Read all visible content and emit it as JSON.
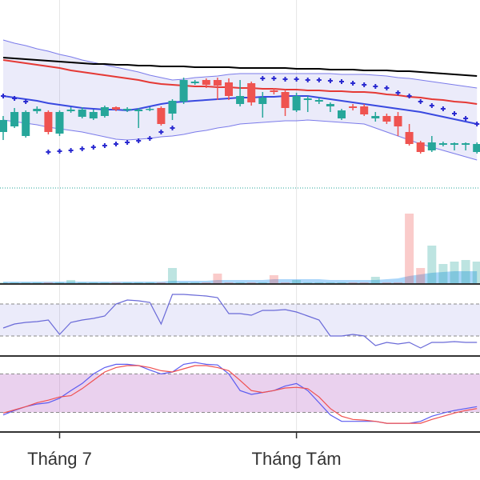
{
  "chart_data": [
    {
      "type": "candlestick",
      "ylim": [
        0,
        240
      ],
      "up_color": "#26a69a",
      "down_color": "#ef5350",
      "open": [
        75,
        82,
        70,
        101,
        100,
        73,
        101,
        94,
        92,
        95,
        106,
        102,
        101,
        103,
        105,
        98,
        113,
        136,
        140,
        140,
        137,
        110,
        136,
        110,
        127,
        125,
        102,
        115,
        113,
        107,
        92,
        107,
        107,
        92,
        95,
        95,
        75,
        62,
        52,
        59,
        59,
        59,
        50
      ],
      "high": [
        95,
        105,
        102,
        107,
        102,
        102,
        106,
        106,
        103,
        108,
        107,
        106,
        105,
        106,
        107,
        116,
        143,
        140,
        142,
        143,
        142,
        140,
        138,
        125,
        130,
        128,
        124,
        120,
        118,
        112,
        104,
        110,
        110,
        100,
        98,
        100,
        85,
        64,
        70,
        63,
        62,
        62,
        62
      ],
      "low": [
        65,
        80,
        68,
        98,
        72,
        70,
        99,
        92,
        90,
        93,
        101,
        100,
        80,
        101,
        83,
        90,
        110,
        134,
        130,
        115,
        115,
        107,
        108,
        93,
        122,
        95,
        100,
        100,
        110,
        100,
        90,
        102,
        95,
        88,
        85,
        70,
        58,
        48,
        50,
        57,
        52,
        52,
        48
      ],
      "close": [
        90,
        100,
        100,
        104,
        75,
        100,
        103,
        103,
        100,
        106,
        103,
        104,
        103,
        104,
        85,
        114,
        140,
        138,
        134,
        133,
        120,
        120,
        112,
        118,
        125,
        105,
        120,
        117,
        115,
        110,
        102,
        105,
        97,
        95,
        88,
        82,
        60,
        50,
        62,
        61,
        61,
        61,
        60
      ],
      "series": [
        {
          "color": "#000000",
          "values": [
            168,
            167,
            166,
            165,
            164,
            163,
            162,
            161,
            160,
            160,
            159,
            159,
            158,
            158,
            157,
            157,
            157,
            156,
            156,
            156,
            156,
            155,
            155,
            155,
            155,
            155,
            154,
            154,
            154,
            153,
            153,
            153,
            152,
            152,
            152,
            151,
            151,
            150,
            149,
            148,
            147,
            146,
            145
          ]
        },
        {
          "color": "#e53935",
          "values": [
            165,
            163,
            161,
            159,
            157,
            155,
            152,
            150,
            148,
            146,
            144,
            142,
            140,
            137,
            135,
            134,
            133,
            132,
            132,
            131,
            131,
            130,
            130,
            129,
            129,
            128,
            128,
            127,
            127,
            126,
            126,
            125,
            125,
            124,
            122,
            121,
            119,
            118,
            116,
            115,
            113,
            112,
            110
          ]
        },
        {
          "color": "#3949e0",
          "values": [
            120,
            118,
            116,
            114,
            111,
            109,
            107,
            105,
            104,
            103,
            103,
            102,
            104,
            107,
            110,
            112,
            113,
            114,
            115,
            116,
            117,
            118,
            118,
            119,
            119,
            120,
            120,
            120,
            118,
            116,
            114,
            112,
            110,
            108,
            106,
            104,
            102,
            100,
            97,
            94,
            91,
            88,
            85
          ]
        }
      ],
      "band": {
        "color": "#7b7bea",
        "fill": "rgba(120,120,220,0.15)",
        "upper": [
          190,
          186,
          183,
          179,
          176,
          172,
          169,
          165,
          162,
          159,
          156,
          153,
          150,
          146,
          143,
          140,
          141,
          143,
          144,
          145,
          147,
          148,
          148,
          148,
          148,
          148,
          148,
          148,
          148,
          148,
          147,
          147,
          147,
          146,
          145,
          143,
          142,
          140,
          138,
          136,
          134,
          132,
          130
        ],
        "lower": [
          90,
          88,
          86,
          84,
          81,
          79,
          77,
          75,
          72,
          69,
          66,
          65,
          66,
          67,
          69,
          70,
          72,
          75,
          77,
          80,
          82,
          85,
          86,
          87,
          88,
          89,
          89,
          90,
          89,
          88,
          87,
          86,
          85,
          80,
          75,
          70,
          65,
          60,
          56,
          52,
          48,
          44,
          40
        ]
      },
      "sar": {
        "color": "#2a2ad0",
        "values": [
          120,
          117,
          113,
          null,
          50,
          51,
          52,
          54,
          56,
          58,
          60,
          62,
          64,
          67,
          75,
          80,
          null,
          null,
          null,
          null,
          null,
          null,
          null,
          142,
          142,
          141,
          141,
          140,
          140,
          139,
          138,
          136,
          134,
          132,
          130,
          124,
          120,
          113,
          108,
          104,
          98,
          92,
          85
        ]
      },
      "hline": {
        "value": 5,
        "color": "#26a69a"
      }
    },
    {
      "type": "volume",
      "ylim": [
        0,
        115
      ],
      "up_color": "rgba(38,166,154,0.3)",
      "down_color": "rgba(239,83,80,0.3)",
      "values": [
        2,
        2,
        2,
        2,
        2,
        2,
        5,
        2,
        2,
        2,
        2,
        2,
        2,
        2,
        2,
        20,
        2,
        2,
        2,
        13,
        2,
        2,
        2,
        2,
        11,
        2,
        5,
        2,
        2,
        2,
        2,
        2,
        2,
        9,
        2,
        2,
        88,
        20,
        48,
        25,
        28,
        30,
        28
      ],
      "ma": {
        "color": "rgba(66,165,245,0.45)",
        "values": [
          3,
          3,
          3,
          3,
          3,
          3,
          3,
          3,
          3,
          3,
          3,
          3,
          3,
          3,
          3,
          4,
          4,
          4,
          4,
          5,
          5,
          5,
          5,
          5,
          6,
          6,
          6,
          6,
          6,
          5,
          5,
          5,
          5,
          5,
          6,
          7,
          10,
          12,
          14,
          15,
          16,
          16,
          16
        ]
      }
    },
    {
      "type": "line",
      "ylim": [
        6,
        93
      ],
      "band": [
        30,
        70
      ],
      "band_fill": "rgba(120,120,220,0.15)",
      "series": [
        {
          "color": "#6a6ad8",
          "values": [
            40,
            45,
            47,
            48,
            50,
            32,
            47,
            50,
            52,
            55,
            70,
            75,
            74,
            72,
            45,
            82,
            82,
            81,
            80,
            78,
            58,
            58,
            56,
            62,
            62,
            63,
            60,
            55,
            50,
            30,
            30,
            32,
            30,
            18,
            22,
            20,
            22,
            15,
            22,
            22,
            23,
            22,
            22
          ]
        }
      ]
    },
    {
      "type": "line",
      "ylim": [
        -9.4,
        105.5
      ],
      "band": [
        20,
        80
      ],
      "band_fill": "rgba(186,104,200,0.3)",
      "categories": [
        null,
        null,
        null,
        null,
        null,
        "Tháng 7",
        null,
        null,
        null,
        null,
        null,
        null,
        null,
        null,
        null,
        null,
        null,
        null,
        null,
        null,
        null,
        null,
        null,
        null,
        null,
        null,
        "Tháng Tám",
        null,
        null,
        null,
        null,
        null,
        null,
        null,
        null,
        null,
        null,
        null,
        null,
        null,
        null,
        null,
        null
      ],
      "series": [
        {
          "color": "#5c5cf0",
          "values": [
            16,
            23,
            29,
            33,
            35,
            42,
            54,
            65,
            80,
            90,
            95,
            95,
            93,
            86,
            80,
            83,
            95,
            98,
            95,
            94,
            80,
            54,
            48,
            51,
            54,
            61,
            65,
            54,
            35,
            16,
            6,
            6,
            6,
            6,
            3,
            3,
            3,
            6,
            14,
            19,
            23,
            26,
            29
          ]
        },
        {
          "color": "#f05050",
          "values": [
            19,
            24,
            29,
            35,
            39,
            44,
            46,
            57,
            70,
            83,
            90,
            93,
            93,
            90,
            85,
            83,
            88,
            93,
            93,
            90,
            85,
            70,
            54,
            51,
            54,
            58,
            59,
            57,
            44,
            26,
            14,
            9,
            8,
            6,
            3,
            3,
            3,
            3,
            9,
            14,
            19,
            23,
            26
          ]
        }
      ]
    }
  ]
}
